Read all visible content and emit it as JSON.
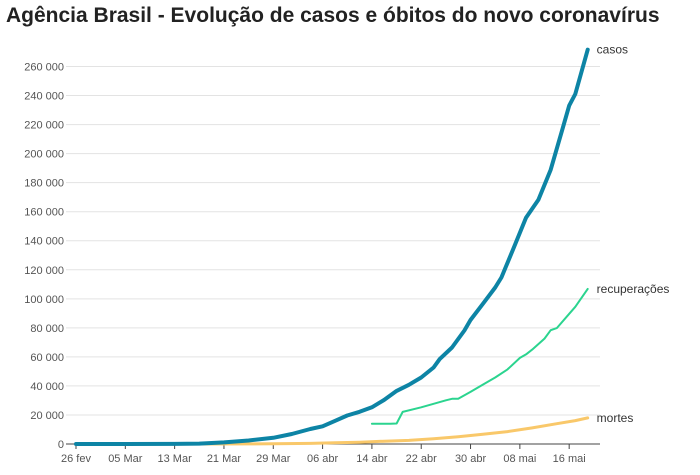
{
  "title": "Agência Brasil - Evolução de casos e óbitos do novo coronavírus",
  "colors": {
    "casos": "#0d84a5",
    "recuperacoes": "#2bd48f",
    "mortes": "#f9c86a",
    "grid": "#e3e3e3",
    "axis": "#444444"
  },
  "chart_data": {
    "type": "line",
    "title": "Agência Brasil - Evolução de casos e óbitos do novo coronavírus",
    "xlabel": "",
    "ylabel": "",
    "grid": true,
    "legend": "direct labels at line ends",
    "x_tick_labels": [
      "26 fev",
      "05 Mar",
      "13 Mar",
      "21 Mar",
      "29 Mar",
      "06 abr",
      "14 abr",
      "22 abr",
      "30 abr",
      "08 mai",
      "16 mai"
    ],
    "y_tick_labels": [
      "0",
      "20 000",
      "40 000",
      "60 000",
      "80 000",
      "100 000",
      "120 000",
      "140 000",
      "160 000",
      "180 000",
      "200 000",
      "220 000",
      "240 000",
      "260 000"
    ],
    "ylim": [
      0,
      270000
    ],
    "xlim": [
      "2020-02-26",
      "2020-05-21"
    ],
    "series": [
      {
        "name": "casos",
        "color": "#0d84a5",
        "points": [
          [
            "2020-02-26",
            0
          ],
          [
            "2020-03-05",
            0
          ],
          [
            "2020-03-13",
            100
          ],
          [
            "2020-03-17",
            300
          ],
          [
            "2020-03-21",
            1100
          ],
          [
            "2020-03-25",
            2400
          ],
          [
            "2020-03-29",
            4300
          ],
          [
            "2020-04-01",
            6900
          ],
          [
            "2020-04-04",
            10300
          ],
          [
            "2020-04-06",
            12200
          ],
          [
            "2020-04-08",
            15900
          ],
          [
            "2020-04-10",
            19600
          ],
          [
            "2020-04-12",
            22200
          ],
          [
            "2020-04-14",
            25300
          ],
          [
            "2020-04-16",
            30400
          ],
          [
            "2020-04-18",
            36600
          ],
          [
            "2020-04-20",
            40800
          ],
          [
            "2020-04-22",
            45800
          ],
          [
            "2020-04-24",
            52700
          ],
          [
            "2020-04-25",
            58500
          ],
          [
            "2020-04-27",
            66500
          ],
          [
            "2020-04-29",
            78200
          ],
          [
            "2020-04-30",
            85400
          ],
          [
            "2020-05-02",
            96600
          ],
          [
            "2020-05-04",
            107800
          ],
          [
            "2020-05-05",
            114700
          ],
          [
            "2020-05-07",
            135100
          ],
          [
            "2020-05-09",
            155900
          ],
          [
            "2020-05-11",
            168300
          ],
          [
            "2020-05-13",
            188900
          ],
          [
            "2020-05-15",
            218200
          ],
          [
            "2020-05-16",
            233100
          ],
          [
            "2020-05-17",
            241100
          ],
          [
            "2020-05-19",
            271600
          ]
        ]
      },
      {
        "name": "recuperações",
        "color": "#2bd48f",
        "points": [
          [
            "2020-04-14",
            14000
          ],
          [
            "2020-04-17",
            14000
          ],
          [
            "2020-04-18",
            14100
          ],
          [
            "2020-04-19",
            22100
          ],
          [
            "2020-04-22",
            25300
          ],
          [
            "2020-04-24",
            27700
          ],
          [
            "2020-04-26",
            30100
          ],
          [
            "2020-04-27",
            31100
          ],
          [
            "2020-04-28",
            31200
          ],
          [
            "2020-04-30",
            35900
          ],
          [
            "2020-05-02",
            40900
          ],
          [
            "2020-05-04",
            45800
          ],
          [
            "2020-05-06",
            51400
          ],
          [
            "2020-05-08",
            59300
          ],
          [
            "2020-05-09",
            61700
          ],
          [
            "2020-05-10",
            65000
          ],
          [
            "2020-05-12",
            72600
          ],
          [
            "2020-05-13",
            78400
          ],
          [
            "2020-05-14",
            79800
          ],
          [
            "2020-05-16",
            89700
          ],
          [
            "2020-05-17",
            94500
          ],
          [
            "2020-05-19",
            106800
          ]
        ]
      },
      {
        "name": "mortes",
        "color": "#f9c86a",
        "points": [
          [
            "2020-02-26",
            0
          ],
          [
            "2020-03-17",
            0
          ],
          [
            "2020-03-25",
            80
          ],
          [
            "2020-03-29",
            200
          ],
          [
            "2020-04-04",
            430
          ],
          [
            "2020-04-08",
            820
          ],
          [
            "2020-04-12",
            1220
          ],
          [
            "2020-04-16",
            1950
          ],
          [
            "2020-04-20",
            2460
          ],
          [
            "2020-04-24",
            3670
          ],
          [
            "2020-04-28",
            5050
          ],
          [
            "2020-05-02",
            6750
          ],
          [
            "2020-05-06",
            8540
          ],
          [
            "2020-05-10",
            11120
          ],
          [
            "2020-05-14",
            13990
          ],
          [
            "2020-05-17",
            16120
          ],
          [
            "2020-05-19",
            17970
          ]
        ]
      }
    ]
  }
}
